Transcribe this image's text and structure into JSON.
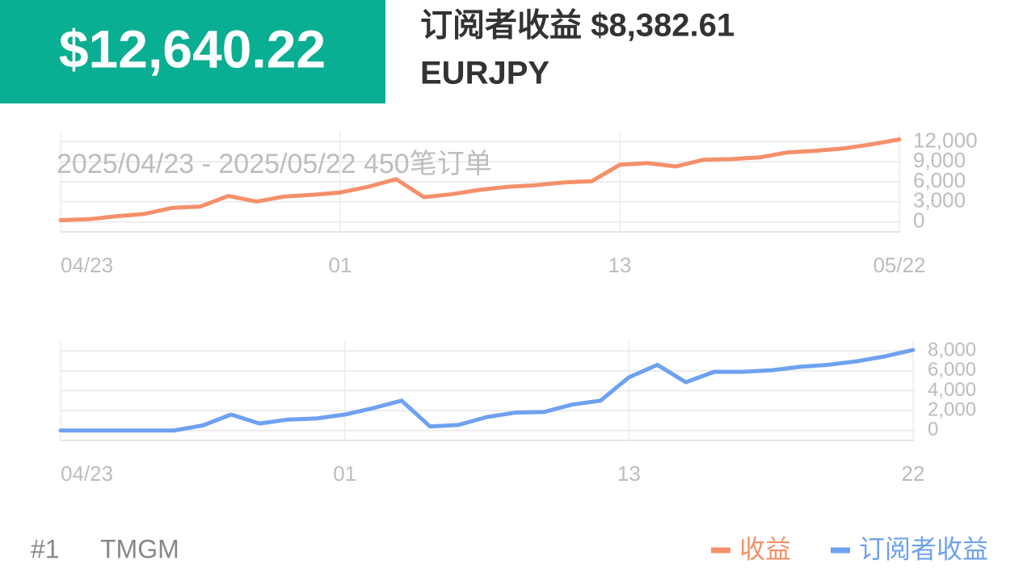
{
  "header": {
    "total": "$12,640.22",
    "subscriber_income": "订阅者收益 $8,382.61",
    "symbol": "EURJPY"
  },
  "chart_data": [
    {
      "type": "line",
      "subtitle": "2025/04/23 - 2025/05/22  450笔订单",
      "categories": [
        "04/23",
        null,
        null,
        null,
        null,
        null,
        null,
        null,
        null,
        null,
        "01",
        null,
        null,
        null,
        null,
        null,
        null,
        null,
        null,
        null,
        "13",
        null,
        null,
        null,
        null,
        null,
        null,
        null,
        null,
        null,
        "05/22"
      ],
      "series": [
        {
          "name": "收益",
          "color": "#f4906a",
          "values": [
            250,
            400,
            850,
            1200,
            2100,
            2300,
            3900,
            3050,
            3800,
            4050,
            4400,
            5250,
            6400,
            3700,
            4150,
            4800,
            5250,
            5500,
            5900,
            6100,
            8550,
            8800,
            8300,
            9300,
            9400,
            9650,
            10400,
            10650,
            11000,
            11600,
            12350
          ]
        }
      ],
      "ylim": [
        -1500,
        13500
      ],
      "yticks": [
        0,
        {
          "value": 3000,
          "label": "3,000"
        },
        {
          "value": 6000,
          "label": "6,000"
        },
        {
          "value": 9000,
          "label": "9,000"
        },
        {
          "value": 12000,
          "label": "12,000"
        }
      ],
      "grid": true
    },
    {
      "type": "line",
      "categories": [
        "04/23",
        null,
        null,
        null,
        null,
        null,
        null,
        null,
        null,
        null,
        "01",
        null,
        null,
        null,
        null,
        null,
        null,
        null,
        null,
        null,
        "13",
        null,
        null,
        null,
        null,
        null,
        null,
        null,
        null,
        null,
        "22"
      ],
      "series": [
        {
          "name": "订阅者收益",
          "color": "#6ea1f0",
          "values": [
            0,
            0,
            0,
            0,
            0,
            500,
            1600,
            700,
            1100,
            1200,
            1600,
            2250,
            3000,
            400,
            550,
            1350,
            1800,
            1850,
            2600,
            3000,
            5350,
            6600,
            4850,
            5900,
            5900,
            6050,
            6400,
            6600,
            6950,
            7450,
            8100
          ]
        }
      ],
      "ylim": [
        -1000,
        9000
      ],
      "yticks": [
        0,
        {
          "value": 2000,
          "label": "2,000"
        },
        {
          "value": 4000,
          "label": "4,000"
        },
        {
          "value": 6000,
          "label": "6,000"
        },
        {
          "value": 8000,
          "label": "8,000"
        }
      ],
      "grid": true
    }
  ],
  "footer": {
    "rank": "#1",
    "broker": "TMGM"
  }
}
